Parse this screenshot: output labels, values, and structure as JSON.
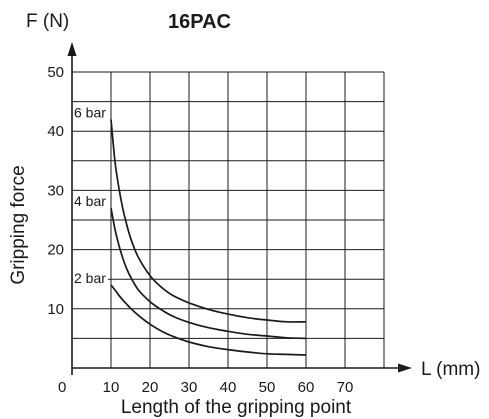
{
  "chart_data": {
    "type": "line",
    "title": "16PAC",
    "y_unit_label": "F (N)",
    "x_unit_label": "L (mm)",
    "xlabel": "Length of the gripping point",
    "ylabel": "Gripping force",
    "xlim": [
      0,
      80
    ],
    "ylim": [
      0,
      52
    ],
    "x_ticks": [
      "10",
      "20",
      "30",
      "40",
      "50",
      "60",
      "70"
    ],
    "x_origin_label": "0",
    "y_ticks": [
      "10",
      "20",
      "30",
      "40",
      "50"
    ],
    "grid": true,
    "series": [
      {
        "name": "6 bar",
        "x": [
          10,
          11,
          12,
          13,
          14,
          15,
          17,
          20,
          23,
          26,
          30,
          35,
          40,
          45,
          50,
          55,
          60
        ],
        "y": [
          42,
          35,
          30.5,
          27,
          24.3,
          22,
          18.7,
          15.6,
          13.6,
          12.2,
          11,
          9.9,
          9.1,
          8.5,
          8.1,
          7.8,
          7.8
        ]
      },
      {
        "name": "4 bar",
        "x": [
          10,
          11,
          12,
          13,
          14,
          15,
          17,
          20,
          23,
          26,
          30,
          35,
          40,
          45,
          50,
          55,
          60
        ],
        "y": [
          27,
          23.5,
          20.8,
          18.6,
          16.8,
          15.4,
          13.2,
          11.2,
          9.8,
          8.7,
          7.7,
          6.8,
          6.2,
          5.7,
          5.4,
          5.1,
          5
        ]
      },
      {
        "name": "2 bar",
        "x": [
          10,
          11,
          12,
          13,
          14,
          15,
          17,
          20,
          23,
          26,
          30,
          35,
          40,
          45,
          50,
          55,
          60
        ],
        "y": [
          14,
          13.2,
          12.3,
          11.5,
          10.8,
          10.1,
          8.9,
          7.4,
          6.2,
          5.3,
          4.4,
          3.6,
          3.1,
          2.7,
          2.4,
          2.3,
          2.2
        ]
      }
    ],
    "colors": {
      "line": "#1a1a1a",
      "grid": "#1a1a1a"
    }
  }
}
